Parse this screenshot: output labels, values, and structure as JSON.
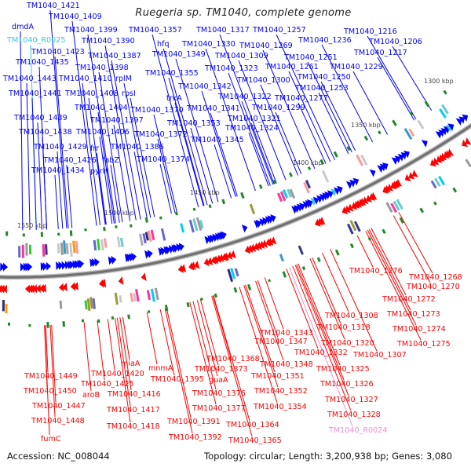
{
  "title": "Ruegeria sp. TM1040, complete genome",
  "colors": {
    "forward": "#0000ff",
    "reverse": "#ff0000",
    "rna_forward": "#33c8e8",
    "rna_reverse": "#f090d0",
    "backbone": "#777777",
    "gc": "#228822"
  },
  "ticks": [
    "1300 kbp",
    "1350 kbp",
    "1400 kbp",
    "1450 kbp",
    "1500 kbp",
    "1550 kbp"
  ],
  "forward_genes": [
    {
      "label": "TM1040_1421"
    },
    {
      "label": "TM1040_1409"
    },
    {
      "label": "dmdA"
    },
    {
      "label": "TM1040_1399"
    },
    {
      "label": "TM1040_R0025",
      "rna": true
    },
    {
      "label": "TM1040_1390"
    },
    {
      "label": "TM1040_1423"
    },
    {
      "label": "TM1040_1387"
    },
    {
      "label": "TM1040_1435"
    },
    {
      "label": "TM1040_1398"
    },
    {
      "label": "TM1040_1443"
    },
    {
      "label": "TM1040_1410"
    },
    {
      "label": "rplM"
    },
    {
      "label": "TM1040_1441"
    },
    {
      "label": "TM1040_1408"
    },
    {
      "label": "rpsI"
    },
    {
      "label": "TM1040_1404"
    },
    {
      "label": "TM1040_1439"
    },
    {
      "label": "TM1040_1397"
    },
    {
      "label": "TM1040_1406"
    },
    {
      "label": "TM1040_1438"
    },
    {
      "label": "TM1040_1429"
    },
    {
      "label": "frr"
    },
    {
      "label": "TM1040_1386"
    },
    {
      "label": "TM1040_1426"
    },
    {
      "label": "fabZ"
    },
    {
      "label": "TM1040_1374"
    },
    {
      "label": "TM1040_1434"
    },
    {
      "label": "pyrH"
    },
    {
      "label": "TM1040_1357"
    },
    {
      "label": "hfq"
    },
    {
      "label": "TM1040_1349"
    },
    {
      "label": "TM1040_1355"
    },
    {
      "label": "TM1040_1370"
    },
    {
      "label": "trkA"
    },
    {
      "label": "TM1040_1372"
    },
    {
      "label": "TM1040_1342"
    },
    {
      "label": "TM1040_1341"
    },
    {
      "label": "TM1040_1353"
    },
    {
      "label": "TM1040_1345"
    },
    {
      "label": "TM1040_1317"
    },
    {
      "label": "TM1040_1257"
    },
    {
      "label": "TM1040_1330"
    },
    {
      "label": "TM1040_1269"
    },
    {
      "label": "TM1040_1309"
    },
    {
      "label": "TM1040_1323"
    },
    {
      "label": "TM1040_1300"
    },
    {
      "label": "TM1040_1322"
    },
    {
      "label": "TM1040_1321"
    },
    {
      "label": "TM1040_1324"
    },
    {
      "label": "TM1040_1299"
    },
    {
      "label": "TM1040_1277"
    },
    {
      "label": "TM1040_1253"
    },
    {
      "label": "TM1040_1250"
    },
    {
      "label": "TM1040_1261"
    },
    {
      "label": "TM1040_1251"
    },
    {
      "label": "TM1040_1236"
    },
    {
      "label": "TM1040_1229"
    },
    {
      "label": "TM1040_1216"
    },
    {
      "label": "TM1040_1206"
    },
    {
      "label": "TM1040_1217"
    }
  ],
  "reverse_genes": [
    {
      "label": "TM1040_1449"
    },
    {
      "label": "TM1040_1450"
    },
    {
      "label": "aroB"
    },
    {
      "label": "TM1040_1447"
    },
    {
      "label": "TM1040_1448"
    },
    {
      "label": "fumC"
    },
    {
      "label": "TM1040_1425"
    },
    {
      "label": "TM1040_1420"
    },
    {
      "label": "miaA"
    },
    {
      "label": "mnmA"
    },
    {
      "label": "TM1040_1395"
    },
    {
      "label": "TM1040_1416"
    },
    {
      "label": "TM1040_1417"
    },
    {
      "label": "TM1040_1418"
    },
    {
      "label": "TM1040_1391"
    },
    {
      "label": "TM1040_1392"
    },
    {
      "label": "guaA"
    },
    {
      "label": "TM1040_1368"
    },
    {
      "label": "TM1040_1373"
    },
    {
      "label": "TM1040_1376"
    },
    {
      "label": "TM1040_1377"
    },
    {
      "label": "TM1040_1364"
    },
    {
      "label": "TM1040_1365"
    },
    {
      "label": "TM1040_1276"
    },
    {
      "label": "TM1040_1268"
    },
    {
      "label": "TM1040_1270"
    },
    {
      "label": "TM1040_1272"
    },
    {
      "label": "TM1040_1273"
    },
    {
      "label": "TM1040_1274"
    },
    {
      "label": "TM1040_1275"
    },
    {
      "label": "TM1040_1308"
    },
    {
      "label": "TM1040_1318"
    },
    {
      "label": "TM1040_1320"
    },
    {
      "label": "TM1040_1307"
    },
    {
      "label": "TM1040_1343"
    },
    {
      "label": "TM1040_1347"
    },
    {
      "label": "TM1040_1332"
    },
    {
      "label": "TM1040_1348"
    },
    {
      "label": "TM1040_1351"
    },
    {
      "label": "TM1040_1325"
    },
    {
      "label": "TM1040_1352"
    },
    {
      "label": "TM1040_1326"
    },
    {
      "label": "TM1040_1354"
    },
    {
      "label": "TM1040_1327"
    },
    {
      "label": "TM1040_1328"
    },
    {
      "label": "TM1040_R0024",
      "rna": true
    }
  ],
  "footer": {
    "accession": "Accession: NC_008044",
    "summary": "Topology: circular; Length: 3,200,938 bp; Genes: 3,080"
  }
}
